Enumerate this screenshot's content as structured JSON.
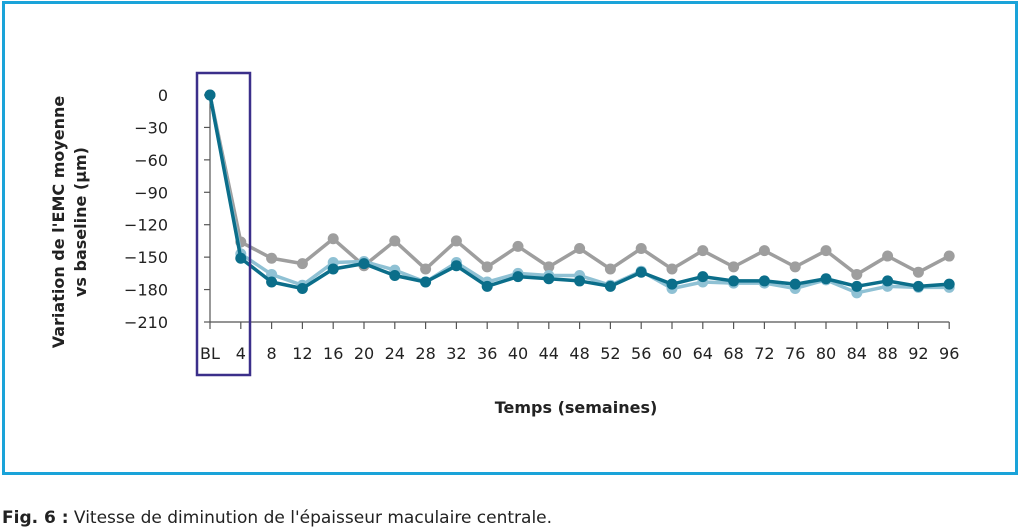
{
  "chart_data": {
    "type": "line",
    "ylabel_line1": "Variation de l'EMC moyenne",
    "ylabel_line2": "vs baseline (µm)",
    "xlabel": "Temps (semaines)",
    "categories": [
      "BL",
      "4",
      "8",
      "12",
      "16",
      "20",
      "24",
      "28",
      "32",
      "36",
      "40",
      "44",
      "48",
      "52",
      "56",
      "60",
      "64",
      "68",
      "72",
      "76",
      "80",
      "84",
      "88",
      "92",
      "96"
    ],
    "yticks": [
      0,
      -30,
      -60,
      -90,
      -120,
      -150,
      -180,
      -210
    ],
    "ylim": [
      -210,
      0
    ],
    "highlight": "box around BL and week 4",
    "series": [
      {
        "color": "#9e9e9e",
        "values": [
          0,
          -136,
          -151,
          -156,
          -133,
          -158,
          -135,
          -161,
          -135,
          -159,
          -140,
          -159,
          -142,
          -161,
          -142,
          -161,
          -144,
          -159,
          -144,
          -159,
          -144,
          -166,
          -149,
          -164,
          -149
        ]
      },
      {
        "color": "#8fc1d4",
        "values": [
          0,
          -147,
          -166,
          -176,
          -155,
          -154,
          -162,
          -173,
          -155,
          -173,
          -165,
          -167,
          -167,
          -176,
          -163,
          -179,
          -173,
          -174,
          -174,
          -179,
          -171,
          -183,
          -177,
          -178,
          -178
        ]
      },
      {
        "color": "#0b6e8a",
        "values": [
          0,
          -151,
          -173,
          -179,
          -161,
          -156,
          -167,
          -173,
          -158,
          -177,
          -168,
          -170,
          -172,
          -177,
          -164,
          -175,
          -168,
          -172,
          -172,
          -175,
          -170,
          -177,
          -172,
          -177,
          -175
        ]
      }
    ]
  },
  "caption": {
    "label": "Fig. 6 :",
    "text": " Vitesse de diminution de l'épaisseur maculaire centrale."
  }
}
